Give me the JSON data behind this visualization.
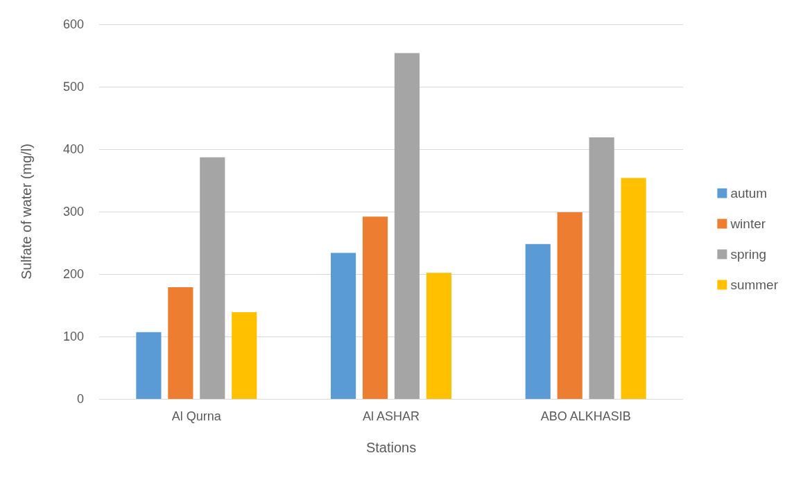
{
  "chart_data": {
    "type": "bar",
    "xlabel": "Stations",
    "ylabel": "Sulfate of water (mg/l)",
    "categories": [
      "Al Qurna",
      "Al ASHAR",
      "ABO ALKHASIB"
    ],
    "series": [
      {
        "name": "autum",
        "color": "#5b9bd5",
        "values": [
          107,
          234,
          248
        ]
      },
      {
        "name": "winter",
        "color": "#ed7d31",
        "values": [
          179,
          292,
          299
        ]
      },
      {
        "name": "spring",
        "color": "#a5a5a5",
        "values": [
          387,
          554,
          419
        ]
      },
      {
        "name": "summer",
        "color": "#ffc000",
        "values": [
          139,
          202,
          354
        ]
      }
    ],
    "ylim": [
      0,
      600
    ],
    "yticks": [
      0,
      100,
      200,
      300,
      400,
      500,
      600
    ],
    "grid": "y",
    "legend": "right"
  }
}
